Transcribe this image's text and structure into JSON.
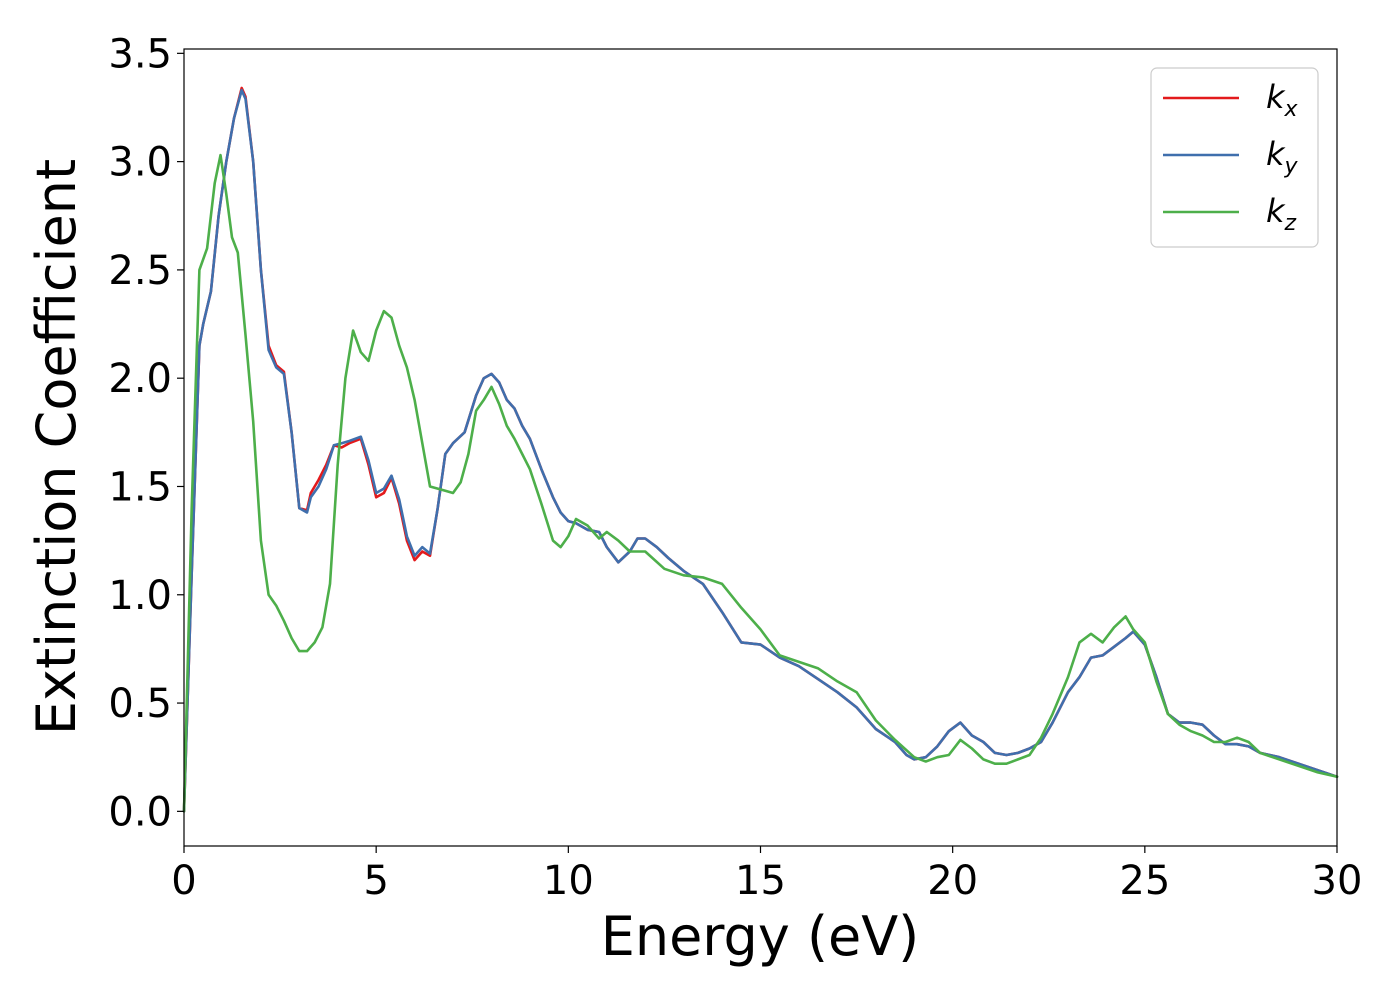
{
  "chart_data": {
    "type": "line",
    "xlabel": "Energy (eV)",
    "ylabel": "Extinction Coefficient",
    "xlim": [
      0,
      30
    ],
    "ylim": [
      -0.16,
      3.52
    ],
    "xticks": [
      0,
      5,
      10,
      15,
      20,
      25,
      30
    ],
    "xtick_labels": [
      "0",
      "5",
      "10",
      "15",
      "20",
      "25",
      "30"
    ],
    "yticks": [
      0.0,
      0.5,
      1.0,
      1.5,
      2.0,
      2.5,
      3.0,
      3.5
    ],
    "ytick_labels": [
      "0.0",
      "0.5",
      "1.0",
      "1.5",
      "2.0",
      "2.5",
      "3.0",
      "3.5"
    ],
    "grid": false,
    "legend_position": "top-right",
    "series": [
      {
        "name": "k",
        "subscript": "x",
        "color": "#e31a1c",
        "x": [
          0,
          0.2,
          0.4,
          0.5,
          0.7,
          0.9,
          1.1,
          1.3,
          1.5,
          1.6,
          1.8,
          2.0,
          2.2,
          2.4,
          2.6,
          2.8,
          3.0,
          3.2,
          3.3,
          3.5,
          3.7,
          3.9,
          4.1,
          4.3,
          4.6,
          4.8,
          5.0,
          5.2,
          5.4,
          5.6,
          5.8,
          6.0,
          6.2,
          6.4,
          6.6,
          6.8,
          7.0,
          7.3,
          7.6,
          7.8,
          8.0,
          8.2,
          8.4,
          8.6,
          8.8,
          9.0,
          9.3,
          9.6,
          9.8,
          10.0,
          10.2,
          10.5,
          10.8,
          11.0,
          11.3,
          11.6,
          11.8,
          12.0,
          12.3,
          12.6,
          13.0,
          13.5,
          14.0,
          14.5,
          15.0,
          15.5,
          16.0,
          16.5,
          17.0,
          17.5,
          18.0,
          18.5,
          18.8,
          19.0,
          19.3,
          19.6,
          19.9,
          20.2,
          20.5,
          20.8,
          21.1,
          21.4,
          21.7,
          22.0,
          22.3,
          22.6,
          23.0,
          23.3,
          23.6,
          23.9,
          24.2,
          24.5,
          24.7,
          25.0,
          25.3,
          25.6,
          25.9,
          26.2,
          26.5,
          26.8,
          27.1,
          27.4,
          27.7,
          28.0,
          28.5,
          29.0,
          29.5,
          30.0
        ],
        "y": [
          0.0,
          1.1,
          2.15,
          2.25,
          2.4,
          2.75,
          3.0,
          3.2,
          3.34,
          3.3,
          3.0,
          2.5,
          2.15,
          2.06,
          2.03,
          1.75,
          1.4,
          1.39,
          1.47,
          1.53,
          1.6,
          1.69,
          1.68,
          1.7,
          1.72,
          1.6,
          1.45,
          1.47,
          1.54,
          1.42,
          1.25,
          1.16,
          1.2,
          1.18,
          1.4,
          1.65,
          1.7,
          1.75,
          1.92,
          2.0,
          2.02,
          1.98,
          1.9,
          1.86,
          1.78,
          1.72,
          1.58,
          1.45,
          1.38,
          1.34,
          1.33,
          1.3,
          1.29,
          1.22,
          1.15,
          1.2,
          1.26,
          1.26,
          1.22,
          1.17,
          1.11,
          1.05,
          0.92,
          0.78,
          0.77,
          0.71,
          0.67,
          0.61,
          0.55,
          0.48,
          0.38,
          0.32,
          0.26,
          0.24,
          0.25,
          0.3,
          0.37,
          0.41,
          0.35,
          0.32,
          0.27,
          0.26,
          0.27,
          0.29,
          0.32,
          0.41,
          0.55,
          0.62,
          0.71,
          0.72,
          0.76,
          0.8,
          0.83,
          0.77,
          0.62,
          0.45,
          0.41,
          0.41,
          0.4,
          0.35,
          0.31,
          0.31,
          0.3,
          0.27,
          0.25,
          0.22,
          0.19,
          0.16
        ]
      },
      {
        "name": "k",
        "subscript": "y",
        "color": "#3f6fad",
        "x": [
          0,
          0.2,
          0.4,
          0.5,
          0.7,
          0.9,
          1.1,
          1.3,
          1.5,
          1.6,
          1.8,
          2.0,
          2.2,
          2.4,
          2.6,
          2.8,
          3.0,
          3.2,
          3.3,
          3.5,
          3.7,
          3.9,
          4.1,
          4.3,
          4.6,
          4.8,
          5.0,
          5.2,
          5.4,
          5.6,
          5.8,
          6.0,
          6.2,
          6.4,
          6.6,
          6.8,
          7.0,
          7.3,
          7.6,
          7.8,
          8.0,
          8.2,
          8.4,
          8.6,
          8.8,
          9.0,
          9.3,
          9.6,
          9.8,
          10.0,
          10.2,
          10.5,
          10.8,
          11.0,
          11.3,
          11.6,
          11.8,
          12.0,
          12.3,
          12.6,
          13.0,
          13.5,
          14.0,
          14.5,
          15.0,
          15.5,
          16.0,
          16.5,
          17.0,
          17.5,
          18.0,
          18.5,
          18.8,
          19.0,
          19.3,
          19.6,
          19.9,
          20.2,
          20.5,
          20.8,
          21.1,
          21.4,
          21.7,
          22.0,
          22.3,
          22.6,
          23.0,
          23.3,
          23.6,
          23.9,
          24.2,
          24.5,
          24.7,
          25.0,
          25.3,
          25.6,
          25.9,
          26.2,
          26.5,
          26.8,
          27.1,
          27.4,
          27.7,
          28.0,
          28.5,
          29.0,
          29.5,
          30.0
        ],
        "y": [
          0.0,
          1.1,
          2.15,
          2.25,
          2.4,
          2.75,
          3.0,
          3.2,
          3.33,
          3.29,
          3.0,
          2.5,
          2.13,
          2.05,
          2.02,
          1.75,
          1.4,
          1.38,
          1.45,
          1.5,
          1.58,
          1.69,
          1.7,
          1.71,
          1.73,
          1.62,
          1.47,
          1.49,
          1.55,
          1.44,
          1.27,
          1.18,
          1.22,
          1.19,
          1.4,
          1.65,
          1.7,
          1.75,
          1.92,
          2.0,
          2.02,
          1.98,
          1.9,
          1.86,
          1.78,
          1.72,
          1.58,
          1.45,
          1.38,
          1.34,
          1.33,
          1.3,
          1.29,
          1.22,
          1.15,
          1.2,
          1.26,
          1.26,
          1.22,
          1.17,
          1.11,
          1.05,
          0.92,
          0.78,
          0.77,
          0.71,
          0.67,
          0.61,
          0.55,
          0.48,
          0.38,
          0.32,
          0.26,
          0.24,
          0.25,
          0.3,
          0.37,
          0.41,
          0.35,
          0.32,
          0.27,
          0.26,
          0.27,
          0.29,
          0.32,
          0.41,
          0.55,
          0.62,
          0.71,
          0.72,
          0.76,
          0.8,
          0.83,
          0.77,
          0.62,
          0.45,
          0.41,
          0.41,
          0.4,
          0.35,
          0.31,
          0.31,
          0.3,
          0.27,
          0.25,
          0.22,
          0.19,
          0.16
        ]
      },
      {
        "name": "k",
        "subscript": "z",
        "color": "#4daf4a",
        "x": [
          0,
          0.2,
          0.4,
          0.6,
          0.8,
          0.95,
          1.1,
          1.25,
          1.4,
          1.6,
          1.8,
          2.0,
          2.2,
          2.4,
          2.6,
          2.8,
          3.0,
          3.2,
          3.4,
          3.6,
          3.8,
          4.0,
          4.2,
          4.4,
          4.6,
          4.8,
          5.0,
          5.2,
          5.4,
          5.6,
          5.8,
          6.0,
          6.2,
          6.4,
          6.6,
          6.8,
          7.0,
          7.2,
          7.4,
          7.6,
          7.8,
          8.0,
          8.2,
          8.4,
          8.6,
          8.8,
          9.0,
          9.3,
          9.6,
          9.8,
          10.0,
          10.2,
          10.5,
          10.8,
          11.0,
          11.3,
          11.6,
          12.0,
          12.5,
          13.0,
          13.5,
          14.0,
          14.5,
          15.0,
          15.5,
          16.0,
          16.5,
          17.0,
          17.5,
          18.0,
          18.5,
          19.0,
          19.3,
          19.6,
          19.9,
          20.2,
          20.5,
          20.8,
          21.1,
          21.4,
          21.7,
          22.0,
          22.3,
          22.6,
          23.0,
          23.3,
          23.6,
          23.9,
          24.2,
          24.5,
          24.7,
          25.0,
          25.3,
          25.6,
          25.9,
          26.2,
          26.5,
          26.8,
          27.1,
          27.4,
          27.7,
          28.0,
          28.5,
          29.0,
          29.5,
          30.0
        ],
        "y": [
          0.0,
          1.4,
          2.5,
          2.6,
          2.9,
          3.03,
          2.85,
          2.65,
          2.58,
          2.2,
          1.8,
          1.25,
          1.0,
          0.95,
          0.88,
          0.8,
          0.74,
          0.74,
          0.78,
          0.85,
          1.05,
          1.6,
          2.0,
          2.22,
          2.12,
          2.08,
          2.22,
          2.31,
          2.28,
          2.15,
          2.05,
          1.9,
          1.7,
          1.5,
          1.49,
          1.48,
          1.47,
          1.52,
          1.65,
          1.85,
          1.9,
          1.96,
          1.88,
          1.78,
          1.72,
          1.65,
          1.58,
          1.42,
          1.25,
          1.22,
          1.27,
          1.35,
          1.32,
          1.26,
          1.29,
          1.25,
          1.2,
          1.2,
          1.12,
          1.09,
          1.08,
          1.05,
          0.94,
          0.84,
          0.72,
          0.69,
          0.66,
          0.6,
          0.55,
          0.42,
          0.33,
          0.25,
          0.23,
          0.25,
          0.26,
          0.33,
          0.29,
          0.24,
          0.22,
          0.22,
          0.24,
          0.26,
          0.34,
          0.45,
          0.62,
          0.78,
          0.82,
          0.78,
          0.85,
          0.9,
          0.84,
          0.78,
          0.6,
          0.45,
          0.4,
          0.37,
          0.35,
          0.32,
          0.32,
          0.34,
          0.32,
          0.27,
          0.24,
          0.21,
          0.18,
          0.16
        ]
      }
    ]
  }
}
